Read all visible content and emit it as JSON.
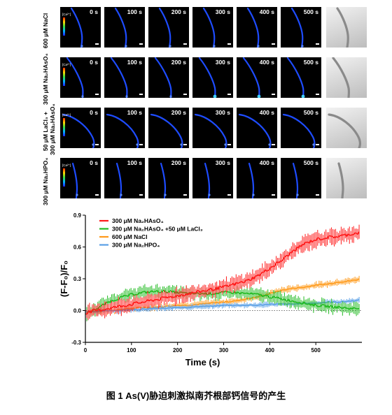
{
  "panel": {
    "time_labels": [
      "0 s",
      "100 s",
      "200 s",
      "300 s",
      "400 s",
      "500 s"
    ],
    "colorbar_label": "[Ca²⁺]",
    "rows": [
      {
        "label_lines": [
          "600 μM NaCl"
        ]
      },
      {
        "label_lines": [
          "300 μM Na₂HAsO₄"
        ]
      },
      {
        "label_lines": [
          "50 μM LaCl₃ +",
          "300 μM Na₂HAsO₄"
        ]
      },
      {
        "label_lines": [
          "300 μM Na₂HPO₄"
        ]
      }
    ]
  },
  "chart_data": {
    "type": "line",
    "xlabel": "Time (s)",
    "ylabel": "(F-F₀)/F₀",
    "xlim": [
      0,
      600
    ],
    "ylim": [
      -0.3,
      0.9
    ],
    "xticks": [
      0,
      100,
      200,
      300,
      400,
      500
    ],
    "yticks": [
      -0.3,
      0.0,
      0.3,
      0.6,
      0.9
    ],
    "ytick_labels": [
      "-0.3",
      "0.0",
      "0.3",
      "0.6",
      "0.9"
    ],
    "grid": false,
    "legend_position": "top-left",
    "baseline": 0.0,
    "x": [
      0,
      25,
      50,
      75,
      100,
      125,
      150,
      175,
      200,
      225,
      250,
      275,
      300,
      325,
      350,
      375,
      400,
      425,
      450,
      475,
      500,
      525,
      550,
      575,
      600
    ],
    "series": [
      {
        "name": "300 μM Na₂HAsO₄",
        "color": "#ff1a1a",
        "error": 0.06,
        "values": [
          -0.02,
          0.0,
          0.02,
          0.04,
          0.06,
          0.08,
          0.1,
          0.12,
          0.14,
          0.16,
          0.18,
          0.2,
          0.22,
          0.25,
          0.28,
          0.33,
          0.4,
          0.47,
          0.56,
          0.63,
          0.67,
          0.69,
          0.7,
          0.72,
          0.74
        ]
      },
      {
        "name": "300 μM Na₂HAsO₄ +50 μM LaCl₃",
        "color": "#22bb22",
        "error": 0.05,
        "values": [
          -0.03,
          0.02,
          0.08,
          0.12,
          0.15,
          0.17,
          0.18,
          0.18,
          0.17,
          0.16,
          0.16,
          0.16,
          0.17,
          0.17,
          0.16,
          0.15,
          0.13,
          0.11,
          0.09,
          0.07,
          0.05,
          0.04,
          0.03,
          0.02,
          0.02
        ]
      },
      {
        "name": "600 μM NaCl",
        "color": "#ff9a1a",
        "error": 0.025,
        "values": [
          -0.01,
          -0.01,
          0.0,
          0.01,
          0.02,
          0.03,
          0.03,
          0.04,
          0.05,
          0.05,
          0.06,
          0.07,
          0.08,
          0.09,
          0.11,
          0.13,
          0.16,
          0.19,
          0.21,
          0.22,
          0.24,
          0.25,
          0.27,
          0.28,
          0.3
        ]
      },
      {
        "name": "300 μM Na₂HPO₄",
        "color": "#5aa0e6",
        "error": 0.02,
        "values": [
          -0.01,
          -0.01,
          0.0,
          0.0,
          0.01,
          0.01,
          0.02,
          0.02,
          0.03,
          0.03,
          0.04,
          0.04,
          0.05,
          0.05,
          0.05,
          0.05,
          0.06,
          0.06,
          0.06,
          0.07,
          0.07,
          0.08,
          0.08,
          0.09,
          0.1
        ]
      }
    ]
  },
  "caption": "图 1 As(V)胁迫刺激拟南芥根部钙信号的产生"
}
